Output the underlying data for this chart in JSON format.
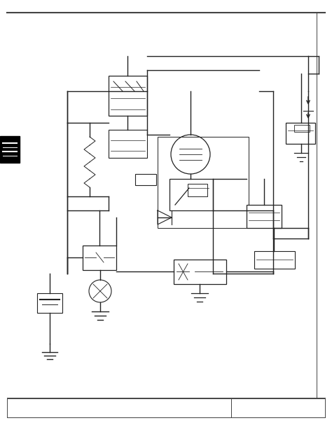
{
  "bg_color": "#ffffff",
  "border_color": "#444444",
  "line_color": "#222222",
  "fig_width": 4.74,
  "fig_height": 6.13,
  "dpi": 100
}
